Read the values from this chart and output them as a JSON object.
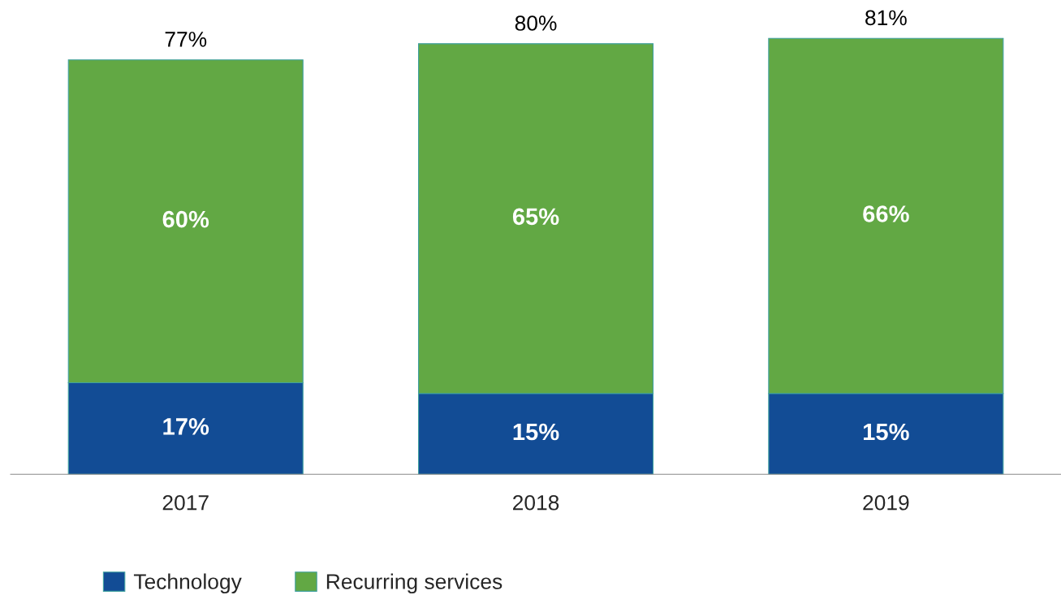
{
  "chart_data": {
    "type": "bar",
    "stacked": true,
    "categories": [
      "2017",
      "2018",
      "2019"
    ],
    "series": [
      {
        "name": "Technology",
        "color": "#124c95",
        "values": [
          17,
          15,
          15
        ],
        "value_labels": [
          "17%",
          "15%",
          "15%"
        ]
      },
      {
        "name": "Recurring services",
        "color": "#62a844",
        "values": [
          60,
          65,
          66
        ],
        "value_labels": [
          "60%",
          "65%",
          "66%"
        ]
      }
    ],
    "totals": [
      "77%",
      "80%",
      "81%"
    ],
    "legend": "bottom left"
  }
}
